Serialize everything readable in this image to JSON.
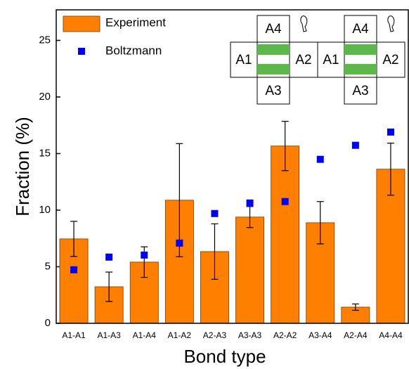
{
  "chart_data": {
    "type": "bar",
    "x_label": "Bond type",
    "y_label": "Fraction (%)",
    "categories": [
      "A1-A1",
      "A1-A3",
      "A1-A4",
      "A1-A2",
      "A2-A3",
      "A3-A3",
      "A2-A2",
      "A3-A4",
      "A2-A4",
      "A4-A4"
    ],
    "series": [
      {
        "name": "Experiment",
        "type": "bar",
        "color": "#ff7f00",
        "values": [
          7.46,
          3.23,
          5.41,
          10.88,
          6.34,
          9.39,
          15.67,
          8.89,
          1.43,
          13.62
        ],
        "errors": [
          1.55,
          1.3,
          1.35,
          5.0,
          2.45,
          0.93,
          2.18,
          1.87,
          0.28,
          2.3
        ]
      },
      {
        "name": "Boltzmann",
        "type": "scatter",
        "color": "#0000ff",
        "values": [
          4.73,
          5.85,
          6.03,
          7.09,
          9.7,
          10.63,
          10.76,
          14.49,
          15.73,
          16.9
        ]
      }
    ],
    "ylim": [
      0,
      27.7
    ],
    "yticks": [
      0,
      5,
      10,
      15,
      20,
      25
    ],
    "legend": "upper left",
    "inset_diagrams": [
      {
        "top": "A4",
        "left": "A1",
        "right": "A2",
        "bottom": "A3"
      },
      {
        "top": "A4",
        "left": "A1",
        "right": "A2",
        "bottom": "A3"
      }
    ]
  }
}
